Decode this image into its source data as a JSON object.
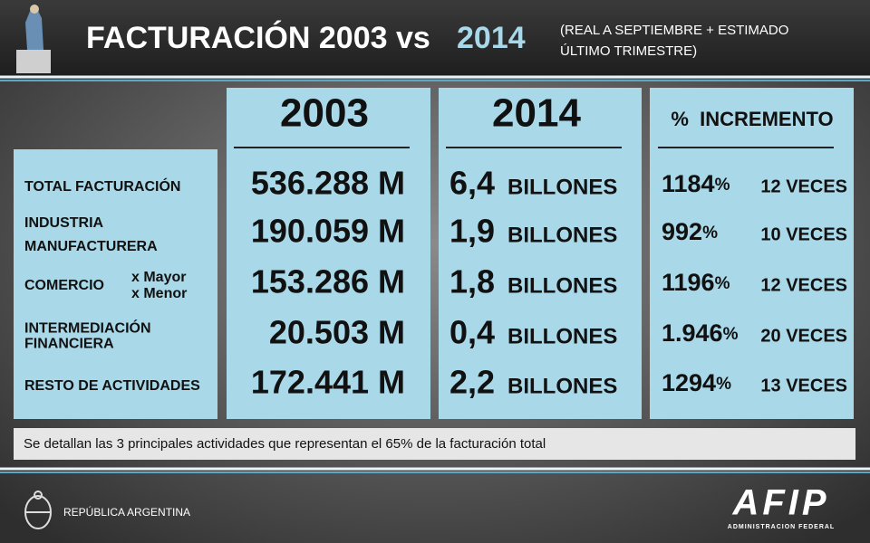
{
  "header": {
    "title": "FACTURACIÓN 2003 vs",
    "title_highlight": "2014",
    "subtitle": [
      "(REAL A SEPTIEMBRE + ESTIMADO",
      "ÚLTIMO TRIMESTRE)"
    ]
  },
  "table": {
    "columns": [
      "2003",
      "2014",
      "%  INCREMENTO"
    ],
    "rows": [
      {
        "label": [
          "TOTAL FACTURACIÓN"
        ],
        "v2003": "536.288 M",
        "v2014": "6,4",
        "unit2014": "BILLONES",
        "pct": "1184",
        "pct_sign": "%",
        "veces": "12 VECES"
      },
      {
        "label": [
          "INDUSTRIA",
          "MANUFACTURERA"
        ],
        "v2003": "190.059 M",
        "v2014": "1,9",
        "unit2014": "BILLONES",
        "pct": "992",
        "pct_sign": "%",
        "veces": "10 VECES"
      },
      {
        "label": [
          "COMERCIO"
        ],
        "sub": [
          "x Mayor",
          "x Menor"
        ],
        "v2003": "153.286 M",
        "v2014": "1,8",
        "unit2014": "BILLONES",
        "pct": "1196",
        "pct_sign": "%",
        "veces": "12 VECES"
      },
      {
        "label": [
          "INTERMEDIACIÓN",
          "FINANCIERA"
        ],
        "v2003": "20.503 M",
        "v2014": "0,4",
        "unit2014": "BILLONES",
        "pct": "1.946",
        "pct_sign": "%",
        "veces": "20 VECES"
      },
      {
        "label": [
          "RESTO DE ACTIVIDADES"
        ],
        "v2003": "172.441 M",
        "v2014": "2,2",
        "unit2014": "BILLONES",
        "pct": "1294",
        "pct_sign": "%",
        "veces": "13 VECES"
      }
    ]
  },
  "footnote": "Se detallan las 3 principales actividades que representan el 65% de la facturación total",
  "footer": {
    "country": "REPÚBLICA ARGENTINA",
    "logo": "AFIP",
    "logo_caption": "ADMINISTRACION FEDERAL"
  }
}
